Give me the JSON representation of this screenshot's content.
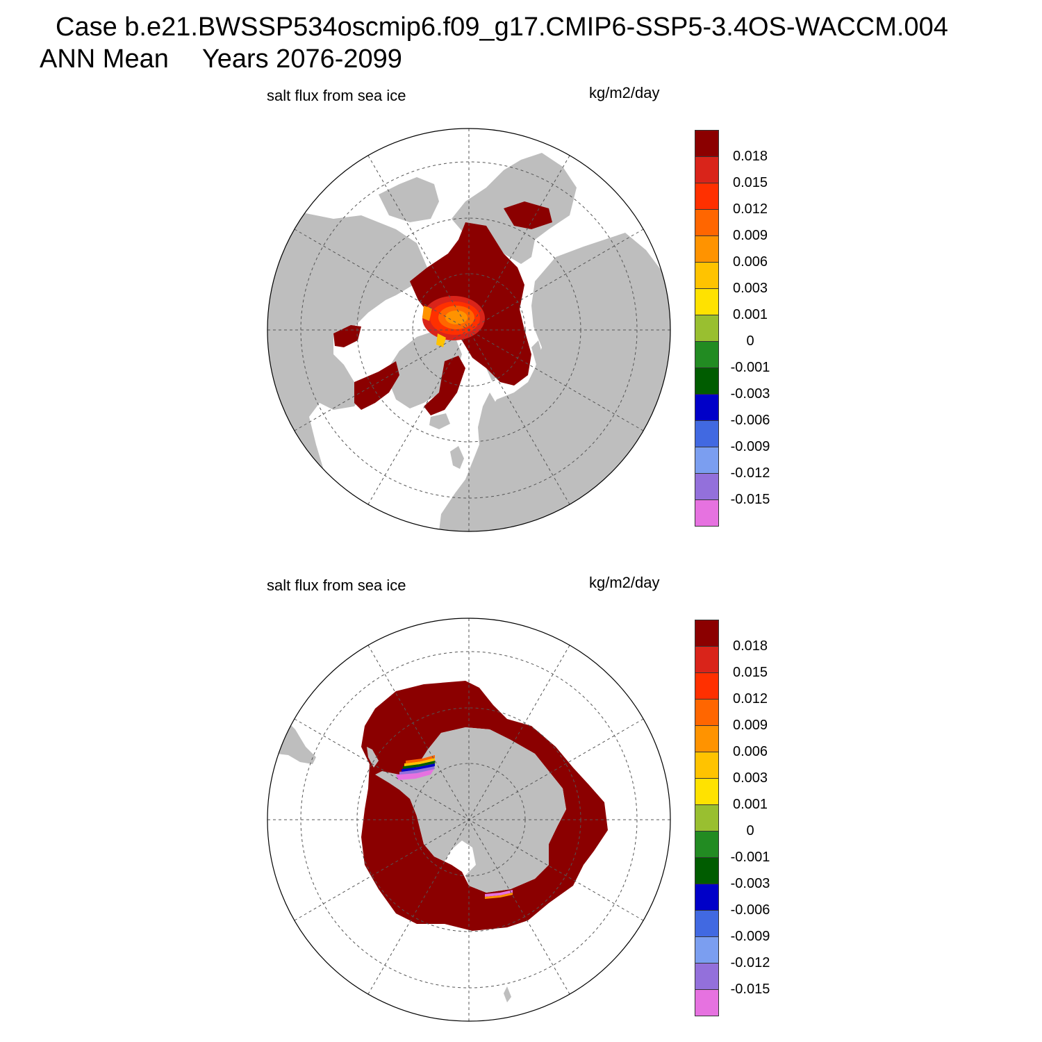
{
  "title": {
    "case": "Case b.e21.BWSSP534oscmip6.f09_g17.CMIP6-SSP5-3.4OS-WACCM.004",
    "season": "ANN Mean",
    "years": "Years 2076-2099"
  },
  "panels": [
    {
      "id": "north",
      "hemisphere": "Northern",
      "variable_label": "salt flux from sea ice",
      "units_label": "kg/m2/day"
    },
    {
      "id": "south",
      "hemisphere": "Southern",
      "variable_label": "salt flux from sea ice",
      "units_label": "kg/m2/day"
    }
  ],
  "colorbar": {
    "labels": [
      "0.018",
      "0.015",
      "0.012",
      "0.009",
      "0.006",
      "0.003",
      "0.001",
      "0",
      "-0.001",
      "-0.003",
      "-0.006",
      "-0.009",
      "-0.012",
      "-0.015"
    ],
    "colors": [
      "#8b0000",
      "#d9241a",
      "#ff3000",
      "#ff6600",
      "#ff9300",
      "#ffc300",
      "#ffe200",
      "#99bf30",
      "#228b22",
      "#005c00",
      "#0000c8",
      "#4169e1",
      "#7b9ef0",
      "#9370db",
      "#e672e0"
    ]
  },
  "colors": {
    "land": "#bebebe",
    "ice_flux_high": "#8b0000",
    "ocean_no_ice": "#ffffff",
    "grid": "#555555"
  }
}
